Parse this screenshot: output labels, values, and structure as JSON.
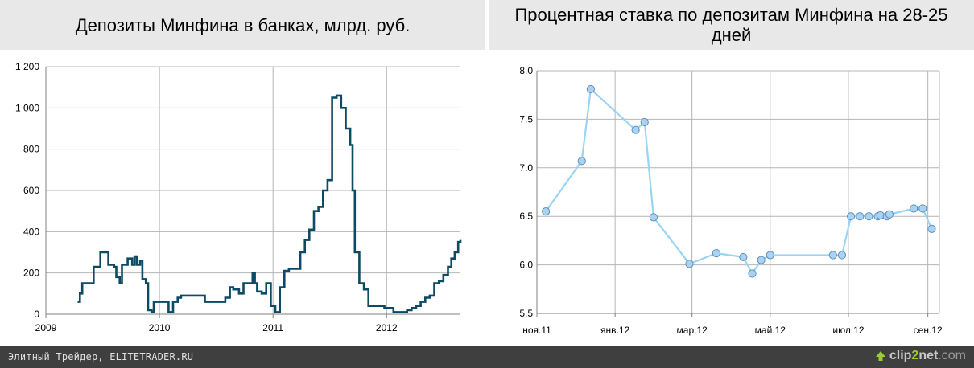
{
  "chart_data": [
    {
      "type": "line",
      "title": "Депозиты Минфина в банках, млрд. руб.",
      "xlabel": "",
      "ylabel": "",
      "xlim": [
        2009,
        2012.65
      ],
      "ylim": [
        0,
        1200
      ],
      "yticks": [
        0,
        200,
        400,
        600,
        800,
        1000,
        1200
      ],
      "ytick_labels": [
        "0",
        "200",
        "400",
        "600",
        "800",
        "1 000",
        "1 200"
      ],
      "xticks": [
        2009,
        2010,
        2011,
        2012
      ],
      "xtick_labels": [
        "2009",
        "2010",
        "2011",
        "2012"
      ],
      "grid": true,
      "step": true,
      "line_color": "#0d4a63",
      "series": [
        {
          "x": [
            2009.28,
            2009.3,
            2009.32,
            2009.35,
            2009.42,
            2009.48,
            2009.55,
            2009.6,
            2009.62,
            2009.65,
            2009.67,
            2009.72,
            2009.76,
            2009.78,
            2009.8,
            2009.83,
            2009.85,
            2009.88,
            2009.9,
            2009.93,
            2009.95,
            2009.97,
            2010.0,
            2010.08,
            2010.1,
            2010.12,
            2010.16,
            2010.19,
            2010.22,
            2010.26,
            2010.35,
            2010.4,
            2010.43,
            2010.46,
            2010.5,
            2010.58,
            2010.62,
            2010.65,
            2010.7,
            2010.74,
            2010.78,
            2010.82,
            2010.84,
            2010.86,
            2010.9,
            2010.94,
            2010.98,
            2011.02,
            2011.06,
            2011.1,
            2011.14,
            2011.18,
            2011.22,
            2011.24,
            2011.28,
            2011.32,
            2011.36,
            2011.4,
            2011.44,
            2011.48,
            2011.52,
            2011.56,
            2011.6,
            2011.64,
            2011.68,
            2011.7,
            2011.72,
            2011.76,
            2011.8,
            2011.84,
            2011.88,
            2011.91,
            2011.94,
            2011.98,
            2012.02,
            2012.06,
            2012.1,
            2012.14,
            2012.18,
            2012.22,
            2012.26,
            2012.3,
            2012.34,
            2012.38,
            2012.42,
            2012.46,
            2012.5,
            2012.54,
            2012.57,
            2012.6,
            2012.63,
            2012.65
          ],
          "y": [
            60,
            100,
            150,
            150,
            230,
            300,
            240,
            230,
            180,
            150,
            240,
            270,
            240,
            280,
            240,
            260,
            170,
            150,
            20,
            10,
            60,
            60,
            60,
            10,
            10,
            60,
            80,
            90,
            90,
            90,
            90,
            60,
            60,
            60,
            60,
            80,
            130,
            120,
            100,
            150,
            150,
            200,
            150,
            110,
            100,
            150,
            40,
            10,
            130,
            210,
            220,
            220,
            220,
            300,
            360,
            410,
            500,
            520,
            600,
            650,
            1050,
            1060,
            1000,
            900,
            820,
            600,
            300,
            150,
            120,
            40,
            40,
            40,
            40,
            30,
            30,
            10,
            10,
            10,
            20,
            30,
            40,
            60,
            80,
            90,
            150,
            160,
            190,
            230,
            270,
            300,
            350,
            360
          ],
          "line_color": "#0d4a63"
        }
      ]
    },
    {
      "type": "line",
      "title": "Процентная ставка по депозитам Минфина на 28-25 дней",
      "xlabel": "",
      "ylabel": "",
      "xlim": [
        "2011-11-01",
        "2012-09-10"
      ],
      "ylim": [
        5.5,
        8.0
      ],
      "yticks": [
        5.5,
        6.0,
        6.5,
        7.0,
        7.5,
        8.0
      ],
      "ytick_labels": [
        "5.5",
        "6.0",
        "6.5",
        "7.0",
        "7.5",
        "8.0"
      ],
      "xticks": [
        "2011-11-01",
        "2012-01-01",
        "2012-03-01",
        "2012-05-01",
        "2012-07-01",
        "2012-09-01"
      ],
      "xtick_labels": [
        "ноя.11",
        "янв.12",
        "мар.12",
        "май.12",
        "июл.12",
        "сен.12"
      ],
      "grid": true,
      "markers": true,
      "line_color": "#9ad4f4",
      "marker_color": "#aad3f3",
      "marker_edge": "#5f8fb8",
      "series": [
        {
          "x": [
            "2011-11-08",
            "2011-12-06",
            "2011-12-13",
            "2012-01-17",
            "2012-01-24",
            "2012-01-31",
            "2012-02-28",
            "2012-03-20",
            "2012-04-10",
            "2012-04-17",
            "2012-04-24",
            "2012-05-01",
            "2012-06-19",
            "2012-06-26",
            "2012-07-03",
            "2012-07-10",
            "2012-07-17",
            "2012-07-24",
            "2012-07-26",
            "2012-07-31",
            "2012-08-02",
            "2012-08-21",
            "2012-08-28",
            "2012-09-04"
          ],
          "y": [
            6.55,
            7.07,
            7.81,
            7.39,
            7.47,
            6.49,
            6.01,
            6.12,
            6.08,
            5.91,
            6.05,
            6.1,
            6.1,
            6.1,
            6.5,
            6.5,
            6.5,
            6.5,
            6.51,
            6.5,
            6.52,
            6.58,
            6.58,
            6.37
          ]
        }
      ]
    }
  ],
  "footer": {
    "credit": "Элитный Трейдер, ELITETRADER.RU",
    "brand_prefix": "clip",
    "brand_mid": "2",
    "brand_suffix": "net",
    "brand_tld": ".com"
  }
}
